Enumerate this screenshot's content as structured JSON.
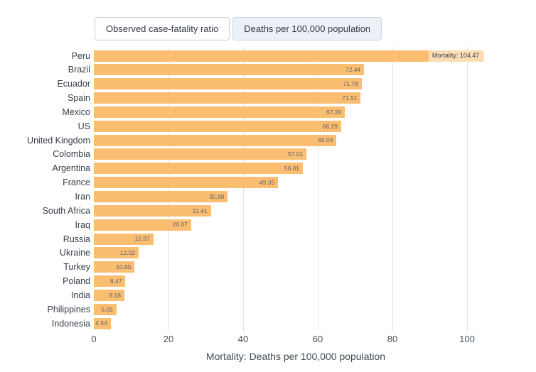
{
  "tabs": [
    {
      "label": "Observed case-fatality ratio",
      "selected": false
    },
    {
      "label": "Deaths per 100,000 population",
      "selected": true
    }
  ],
  "chart_data": {
    "type": "bar",
    "orientation": "horizontal",
    "title": "",
    "xlabel": "Mortality: Deaths per 100,000 population",
    "ylabel": "",
    "categories": [
      "Peru",
      "Brazil",
      "Ecuador",
      "Spain",
      "Mexico",
      "US",
      "United Kingdom",
      "Colombia",
      "Argentina",
      "France",
      "Iran",
      "South Africa",
      "Iraq",
      "Russia",
      "Ukraine",
      "Turkey",
      "Poland",
      "India",
      "Philippines",
      "Indonesia"
    ],
    "values": [
      104.47,
      72.44,
      71.78,
      71.51,
      67.28,
      66.29,
      65.04,
      57.01,
      56.01,
      49.35,
      35.88,
      31.41,
      26.07,
      15.97,
      12.02,
      10.95,
      8.47,
      8.18,
      6.05,
      4.54
    ],
    "value_labels": [
      "Mortality: 104.47",
      "72.44",
      "71.78",
      "71.51",
      "67.28",
      "66.29",
      "65.04",
      "57.01",
      "56.01",
      "49.35",
      "35.88",
      "31.41",
      "26.07",
      "15.97",
      "12.02",
      "10.95",
      "8.47",
      "8.18",
      "6.05",
      "4.54"
    ],
    "hovered_index": 0,
    "x_ticks": [
      0,
      20,
      40,
      60,
      80,
      100
    ],
    "xlim": [
      0,
      110
    ],
    "grid": true,
    "legend": "none",
    "bar_color": "#fbbe70",
    "gridline_color": "#e3e3e3",
    "value_label_color": "#5a6472",
    "selected_tab_bg": "#ecf1f8"
  }
}
